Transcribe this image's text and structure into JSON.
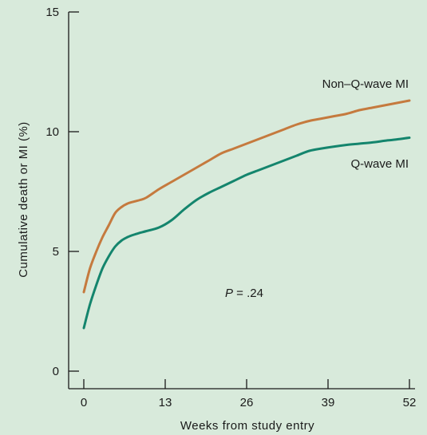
{
  "chart_data": {
    "type": "line",
    "title": "",
    "xlabel": "Weeks from study entry",
    "ylabel": "Cumulative death or MI (%)",
    "xlim": [
      0,
      52
    ],
    "ylim": [
      0,
      15
    ],
    "xticks": [
      "0",
      "13",
      "26",
      "39",
      "52"
    ],
    "yticks": [
      "0",
      "5",
      "10",
      "15"
    ],
    "grid": false,
    "annotation": "P = .24",
    "series": [
      {
        "name": "Non–Q-wave MI",
        "color": "#c57a3e",
        "x": [
          0,
          1,
          2,
          3,
          4,
          5,
          6,
          7,
          8,
          9,
          10,
          12,
          14,
          16,
          18,
          20,
          22,
          24,
          26,
          28,
          30,
          32,
          34,
          36,
          38,
          40,
          42,
          44,
          46,
          48,
          50,
          52
        ],
        "y": [
          3.3,
          4.3,
          5.0,
          5.6,
          6.1,
          6.6,
          6.85,
          7.0,
          7.08,
          7.15,
          7.25,
          7.6,
          7.9,
          8.2,
          8.5,
          8.8,
          9.1,
          9.3,
          9.5,
          9.7,
          9.9,
          10.1,
          10.3,
          10.45,
          10.55,
          10.65,
          10.75,
          10.9,
          11.0,
          11.1,
          11.2,
          11.3
        ]
      },
      {
        "name": "Q-wave MI",
        "color": "#14856d",
        "x": [
          0,
          1,
          2,
          3,
          4,
          5,
          6,
          7,
          8,
          9,
          10,
          12,
          14,
          16,
          18,
          20,
          22,
          24,
          26,
          28,
          30,
          32,
          34,
          36,
          38,
          40,
          42,
          44,
          46,
          48,
          50,
          52
        ],
        "y": [
          1.8,
          2.8,
          3.6,
          4.3,
          4.8,
          5.2,
          5.45,
          5.6,
          5.7,
          5.78,
          5.85,
          6.0,
          6.3,
          6.75,
          7.15,
          7.45,
          7.7,
          7.95,
          8.2,
          8.4,
          8.6,
          8.8,
          9.0,
          9.2,
          9.3,
          9.38,
          9.45,
          9.5,
          9.55,
          9.62,
          9.68,
          9.75
        ]
      }
    ]
  }
}
